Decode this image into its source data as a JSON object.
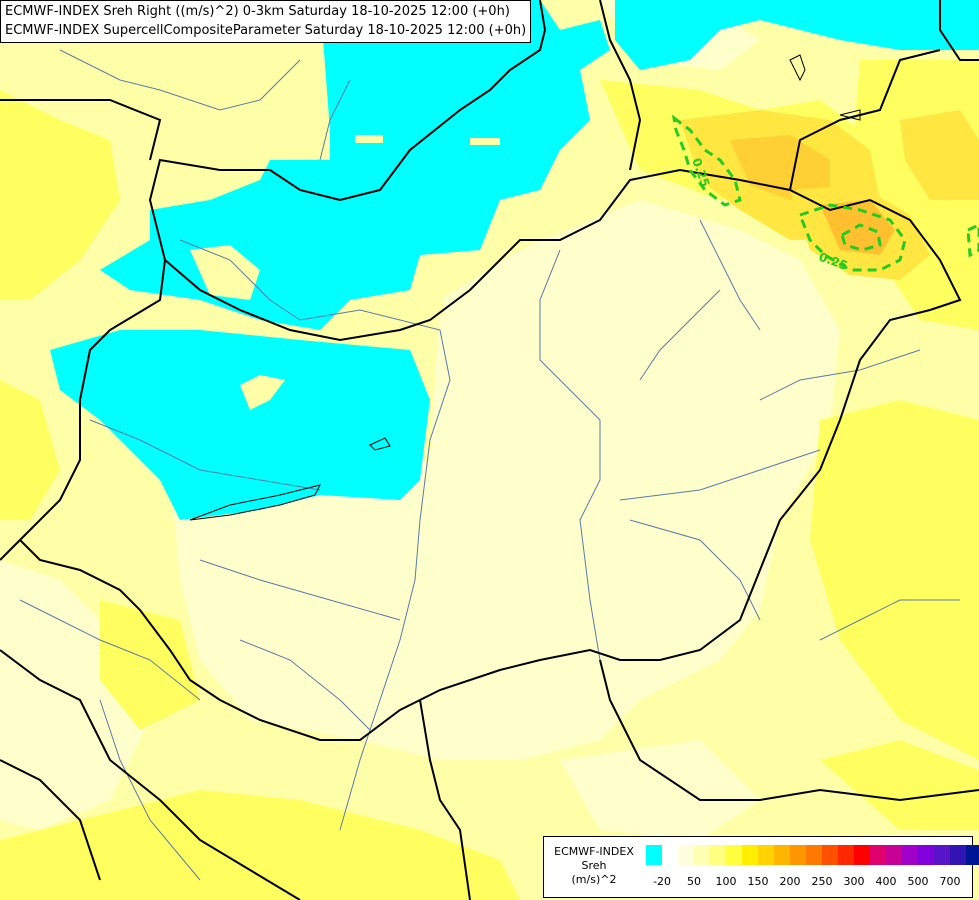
{
  "titles": {
    "line1": "ECMWF-INDEX Sreh Right ((m/s)^2) 0-3km Saturday 18-10-2025 12:00 (+0h)",
    "line2": "ECMWF-INDEX SupercellCompositeParameter Saturday 18-10-2025 12:00 (+0h)"
  },
  "contour_labels": [
    "0.25",
    "0.25"
  ],
  "legend": {
    "title_lines": [
      "ECMWF-INDEX",
      "Sreh",
      "(m/s)^2"
    ],
    "ticks": [
      "-20",
      "50",
      "100",
      "150",
      "200",
      "250",
      "300",
      "400",
      "500",
      "700"
    ],
    "colors": [
      "#00ffff",
      "#ffffff",
      "#ffffe0",
      "#ffffb4",
      "#ffff80",
      "#ffff40",
      "#ffee00",
      "#ffd200",
      "#ffb400",
      "#ff9600",
      "#ff7800",
      "#ff5000",
      "#ff2800",
      "#ff0000",
      "#e0006e",
      "#c80096",
      "#a000c8",
      "#8200dc",
      "#5a14c8",
      "#3214b4",
      "#001496",
      "#000082"
    ]
  },
  "map_colors": {
    "background": "#ffffa8",
    "pale": "#ffffcc",
    "yellow": "#ffff60",
    "gold": "#ffe640",
    "orange": "#ffc030",
    "cyan": "#00ffff",
    "contour": "#22cc22"
  }
}
